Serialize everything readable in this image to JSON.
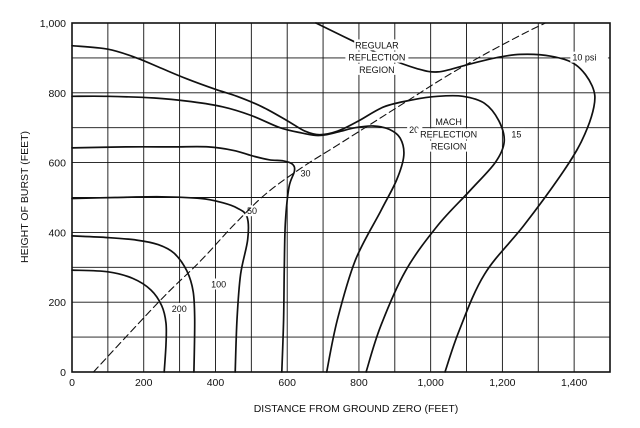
{
  "chart_data": {
    "type": "line",
    "xlabel": "DISTANCE FROM GROUND ZERO (FEET)",
    "ylabel": "HEIGHT OF BURST (FEET)",
    "xlim": [
      0,
      1500
    ],
    "ylim": [
      0,
      1000
    ],
    "x_ticks": [
      0,
      200,
      400,
      600,
      800,
      1000,
      1200,
      1400
    ],
    "x_tick_labels": [
      "0",
      "200",
      "400",
      "600",
      "800",
      "1,000",
      "1,200",
      "1,400"
    ],
    "y_ticks": [
      0,
      200,
      400,
      600,
      800,
      1000
    ],
    "y_tick_labels": [
      "0",
      "200",
      "400",
      "600",
      "800",
      "1,000"
    ],
    "grid": true,
    "x_grid_step": 100,
    "y_grid_step": 100,
    "annotations": [
      {
        "text": "REGULAR",
        "x": 850,
        "y": 930
      },
      {
        "text": "REFLECTION",
        "x": 850,
        "y": 895
      },
      {
        "text": "REGION",
        "x": 850,
        "y": 860
      },
      {
        "text": "MACH",
        "x": 1050,
        "y": 710
      },
      {
        "text": "REFLECTION",
        "x": 1050,
        "y": 675
      },
      {
        "text": "REGION",
        "x": 1050,
        "y": 640
      }
    ],
    "series": [
      {
        "name": "10 psi",
        "label": "10 psi",
        "label_pos": [
          1395,
          895
        ],
        "style": "solid",
        "points": [
          [
            1040,
            0
          ],
          [
            1080,
            120
          ],
          [
            1150,
            280
          ],
          [
            1260,
            420
          ],
          [
            1360,
            560
          ],
          [
            1420,
            660
          ],
          [
            1455,
            760
          ],
          [
            1450,
            820
          ],
          [
            1405,
            880
          ],
          [
            1335,
            905
          ],
          [
            1250,
            910
          ],
          [
            1180,
            900
          ],
          [
            1100,
            880
          ],
          [
            1020,
            860
          ],
          [
            960,
            870
          ],
          [
            880,
            900
          ],
          [
            790,
            945
          ],
          [
            700,
            990
          ],
          [
            680,
            1000
          ]
        ]
      },
      {
        "name": "15",
        "label": "15",
        "label_pos": [
          1225,
          675
        ],
        "style": "solid",
        "points": [
          [
            820,
            0
          ],
          [
            860,
            130
          ],
          [
            930,
            290
          ],
          [
            1020,
            420
          ],
          [
            1110,
            520
          ],
          [
            1180,
            600
          ],
          [
            1205,
            660
          ],
          [
            1190,
            720
          ],
          [
            1150,
            770
          ],
          [
            1090,
            790
          ],
          [
            1020,
            790
          ],
          [
            950,
            780
          ],
          [
            870,
            760
          ],
          [
            800,
            720
          ],
          [
            740,
            690
          ],
          [
            690,
            680
          ],
          [
            650,
            690
          ],
          [
            600,
            720
          ],
          [
            530,
            760
          ],
          [
            460,
            790
          ],
          [
            400,
            810
          ],
          [
            320,
            840
          ],
          [
            250,
            870
          ],
          [
            180,
            900
          ],
          [
            100,
            925
          ],
          [
            0,
            935
          ]
        ]
      },
      {
        "name": "20",
        "label": "20",
        "label_pos": [
          940,
          688
        ],
        "style": "solid",
        "points": [
          [
            710,
            0
          ],
          [
            740,
            150
          ],
          [
            790,
            320
          ],
          [
            860,
            460
          ],
          [
            905,
            550
          ],
          [
            925,
            620
          ],
          [
            915,
            670
          ],
          [
            885,
            695
          ],
          [
            840,
            705
          ],
          [
            790,
            700
          ],
          [
            750,
            690
          ],
          [
            710,
            680
          ],
          [
            680,
            678
          ],
          [
            640,
            685
          ],
          [
            580,
            700
          ],
          [
            500,
            735
          ],
          [
            420,
            760
          ],
          [
            330,
            775
          ],
          [
            230,
            785
          ],
          [
            100,
            790
          ],
          [
            0,
            790
          ]
        ]
      },
      {
        "name": "30",
        "label": "30",
        "label_pos": [
          637,
          563
        ],
        "style": "solid",
        "points": [
          [
            585,
            0
          ],
          [
            590,
            150
          ],
          [
            592,
            300
          ],
          [
            595,
            430
          ],
          [
            605,
            530
          ],
          [
            620,
            575
          ],
          [
            615,
            595
          ],
          [
            590,
            605
          ],
          [
            550,
            608
          ],
          [
            500,
            620
          ],
          [
            450,
            635
          ],
          [
            380,
            645
          ],
          [
            280,
            645
          ],
          [
            150,
            645
          ],
          [
            0,
            642
          ]
        ]
      },
      {
        "name": "50",
        "label": "50",
        "label_pos": [
          488,
          455
        ],
        "style": "solid",
        "points": [
          [
            455,
            0
          ],
          [
            460,
            150
          ],
          [
            470,
            280
          ],
          [
            490,
            380
          ],
          [
            488,
            445
          ],
          [
            460,
            470
          ],
          [
            420,
            485
          ],
          [
            360,
            497
          ],
          [
            250,
            502
          ],
          [
            120,
            500
          ],
          [
            0,
            497
          ]
        ]
      },
      {
        "name": "100",
        "label": "100",
        "label_pos": [
          388,
          245
        ],
        "style": "solid",
        "points": [
          [
            340,
            0
          ],
          [
            342,
            150
          ],
          [
            338,
            230
          ],
          [
            320,
            290
          ],
          [
            285,
            340
          ],
          [
            240,
            365
          ],
          [
            180,
            378
          ],
          [
            100,
            385
          ],
          [
            0,
            390
          ]
        ]
      },
      {
        "name": "200",
        "label": "200",
        "label_pos": [
          278,
          175
        ],
        "style": "solid",
        "points": [
          [
            257,
            0
          ],
          [
            262,
            80
          ],
          [
            262,
            140
          ],
          [
            250,
            190
          ],
          [
            220,
            235
          ],
          [
            170,
            268
          ],
          [
            100,
            287
          ],
          [
            0,
            292
          ]
        ]
      },
      {
        "name": "boundary",
        "label": "",
        "style": "dashed",
        "points": [
          [
            60,
            0
          ],
          [
            150,
            100
          ],
          [
            260,
            220
          ],
          [
            360,
            320
          ],
          [
            450,
            420
          ],
          [
            540,
            510
          ],
          [
            640,
            585
          ],
          [
            740,
            650
          ],
          [
            840,
            715
          ],
          [
            940,
            780
          ],
          [
            1040,
            845
          ],
          [
            1150,
            910
          ],
          [
            1260,
            970
          ],
          [
            1320,
            1000
          ]
        ]
      }
    ]
  }
}
